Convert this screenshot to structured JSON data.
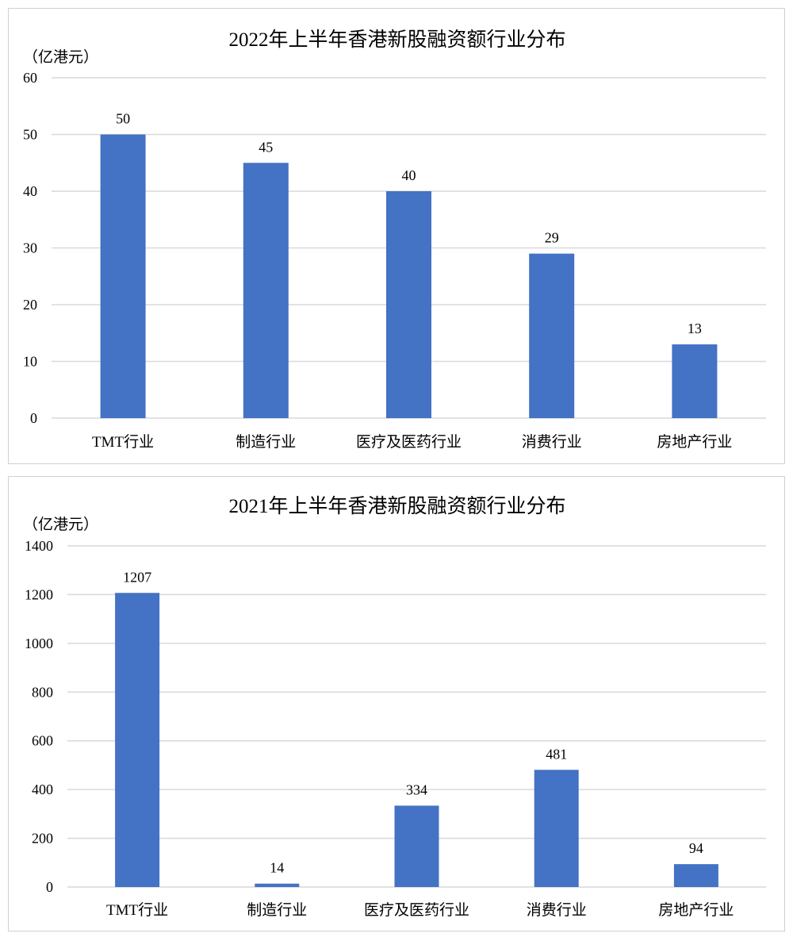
{
  "chart_data": [
    {
      "type": "bar",
      "title": "2022年上半年香港新股融资额行业分布",
      "unit_label": "（亿港元）",
      "categories": [
        "TMT行业",
        "制造行业",
        "医疗及医药行业",
        "消费行业",
        "房地产行业"
      ],
      "values": [
        50,
        45,
        40,
        29,
        13
      ],
      "ylim": [
        0,
        60
      ],
      "yticks": [
        0,
        10,
        20,
        30,
        40,
        50,
        60
      ],
      "grid": true,
      "bar_color": "#4472C4"
    },
    {
      "type": "bar",
      "title": "2021年上半年香港新股融资额行业分布",
      "unit_label": "（亿港元）",
      "categories": [
        "TMT行业",
        "制造行业",
        "医疗及医药行业",
        "消费行业",
        "房地产行业"
      ],
      "values": [
        1207,
        14,
        334,
        481,
        94
      ],
      "ylim": [
        0,
        1400
      ],
      "yticks": [
        0,
        200,
        400,
        600,
        800,
        1000,
        1200,
        1400
      ],
      "grid": true,
      "bar_color": "#4472C4"
    }
  ]
}
